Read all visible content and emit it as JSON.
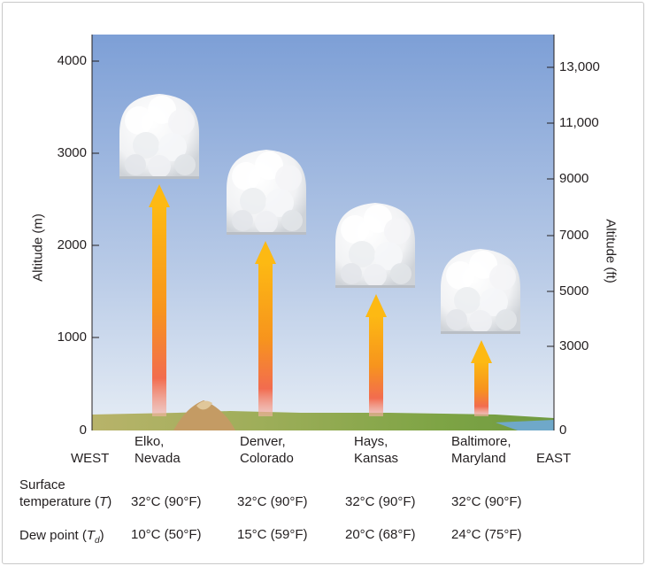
{
  "axes": {
    "left_label": "Altitude (m)",
    "right_label": "Altitude (ft)",
    "left_ticks": [
      "4000",
      "3000",
      "2000",
      "1000",
      "0"
    ],
    "right_ticks": [
      "13,000",
      "11,000",
      "9000",
      "7000",
      "5000",
      "3000",
      "0"
    ]
  },
  "directions": {
    "west": "WEST",
    "east": "EAST"
  },
  "locations": [
    {
      "city": "Elko,",
      "state": "Nevada",
      "temperature": "32°C (90°F)",
      "dew_point": "10°C (50°F)",
      "cloud_base_m": 2700
    },
    {
      "city": "Denver,",
      "state": "Colorado",
      "temperature": "32°C (90°F)",
      "dew_point": "15°C (59°F)",
      "cloud_base_m": 2100
    },
    {
      "city": "Hays,",
      "state": "Kansas",
      "temperature": "32°C (90°F)",
      "dew_point": "20°C (68°F)",
      "cloud_base_m": 1500
    },
    {
      "city": "Baltimore,",
      "state": "Maryland",
      "temperature": "32°C (90°F)",
      "dew_point": "24°C (75°F)",
      "cloud_base_m": 1000
    }
  ],
  "rows": {
    "surface_line1": "Surface",
    "surface_line2": "temperature (",
    "surface_symbol": "T",
    "surface_close": ")",
    "dew_label": "Dew point (",
    "dew_symbol": "T",
    "dew_sub": "d",
    "dew_close": ")"
  },
  "colors": {
    "sky_top": "#7d9fd6",
    "sky_bottom": "#dfe8f3",
    "arrow": "#f7941d",
    "ground": "#8aa34a"
  }
}
